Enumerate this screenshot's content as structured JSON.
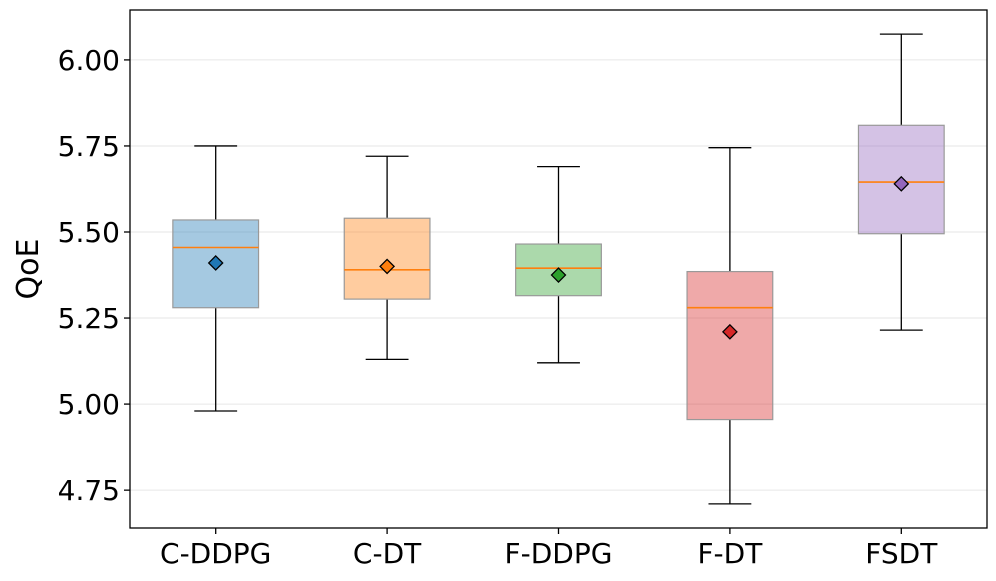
{
  "chart_data": {
    "type": "box",
    "title": "",
    "xlabel": "",
    "ylabel": "QoE",
    "ylim": [
      4.64,
      6.145
    ],
    "yticks": [
      4.75,
      5.0,
      5.25,
      5.5,
      5.75,
      6.0
    ],
    "ytick_labels": [
      "4.75",
      "5.00",
      "5.25",
      "5.50",
      "5.75",
      "6.00"
    ],
    "grid": "horizontal",
    "median_color": "#ff7f0e",
    "categories": [
      "C-DDPG",
      "C-DT",
      "F-DDPG",
      "F-DT",
      "FSDT"
    ],
    "boxes": [
      {
        "label": "C-DDPG",
        "whisker_low": 4.98,
        "q1": 5.28,
        "median": 5.455,
        "q3": 5.535,
        "whisker_high": 5.75,
        "mean": 5.41,
        "color": "#1f77b4"
      },
      {
        "label": "C-DT",
        "whisker_low": 5.13,
        "q1": 5.305,
        "median": 5.39,
        "q3": 5.54,
        "whisker_high": 5.72,
        "mean": 5.4,
        "color": "#ff7f0e"
      },
      {
        "label": "F-DDPG",
        "whisker_low": 5.12,
        "q1": 5.315,
        "median": 5.395,
        "q3": 5.465,
        "whisker_high": 5.69,
        "mean": 5.375,
        "color": "#2ca02c"
      },
      {
        "label": "F-DT",
        "whisker_low": 4.71,
        "q1": 4.955,
        "median": 5.28,
        "q3": 5.385,
        "whisker_high": 5.745,
        "mean": 5.21,
        "color": "#d62728"
      },
      {
        "label": "FSDT",
        "whisker_low": 5.215,
        "q1": 5.495,
        "median": 5.645,
        "q3": 5.81,
        "whisker_high": 6.075,
        "mean": 5.64,
        "color": "#9467bd"
      }
    ]
  }
}
